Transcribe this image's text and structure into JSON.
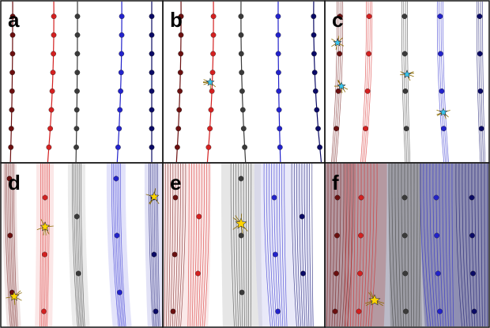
{
  "panels": [
    {
      "id": "a",
      "label": "a",
      "shading": "none",
      "ring_count": 1
    },
    {
      "id": "b",
      "label": "b",
      "shading": "none",
      "ring_count": 1
    },
    {
      "id": "c",
      "label": "c",
      "shading": "none",
      "ring_count": 4
    },
    {
      "id": "d",
      "label": "d",
      "shading": "bands",
      "ring_count": 6
    },
    {
      "id": "e",
      "label": "e",
      "shading": "wide",
      "ring_count": 9
    },
    {
      "id": "f",
      "label": "f",
      "shading": "dark",
      "ring_count": 11
    }
  ],
  "colors": {
    "dark_red": "#6b0f0f",
    "red": "#d42020",
    "gray": "#3a3a3a",
    "blue": "#2222cc",
    "navy": "#0a0a66",
    "star_cyan": "#39c6f0",
    "star_yellow": "#ffd400",
    "border": "#111111"
  },
  "markers": {
    "c": {
      "icon": "cyan-star-icon"
    },
    "d": {
      "icon": "yellow-star-icon"
    },
    "e": {
      "icon": "yellow-star-icon"
    },
    "f": {
      "icon": "yellow-star-icon"
    }
  }
}
